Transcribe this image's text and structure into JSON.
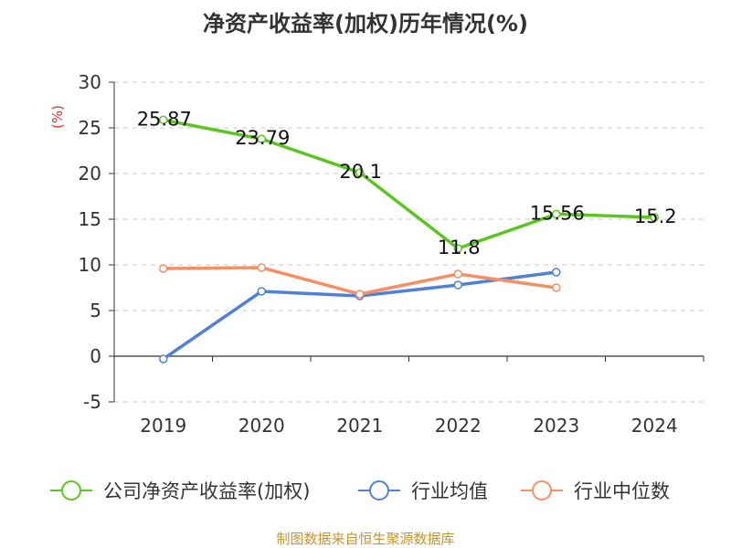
{
  "chart_data": {
    "type": "line",
    "title": "净资产收益率(加权)历年情况(%)",
    "ylabel": "(%)",
    "xlabel": "",
    "categories": [
      "2019",
      "2020",
      "2021",
      "2022",
      "2023",
      "2024"
    ],
    "yticks": [
      "30",
      "25",
      "20",
      "15",
      "10",
      "5",
      "0",
      "-5"
    ],
    "ylim": [
      -5,
      30
    ],
    "grid": true,
    "legend_position": "bottom",
    "series": [
      {
        "name": "公司净资产收益率(加权)",
        "color": "#5cc51f",
        "values": [
          25.87,
          23.79,
          20.1,
          11.8,
          15.56,
          15.2
        ],
        "labels": [
          "25.87",
          "23.79",
          "20.1",
          "11.8",
          "15.56",
          "15.2"
        ]
      },
      {
        "name": "行业均值",
        "color": "#4f81d8",
        "values": [
          -0.3,
          7.1,
          6.6,
          7.8,
          9.2,
          null
        ]
      },
      {
        "name": "行业中位数",
        "color": "#f59064",
        "values": [
          9.6,
          9.7,
          6.8,
          9.0,
          7.5,
          null
        ]
      }
    ],
    "source": "制图数据来自恒生聚源数据库"
  }
}
